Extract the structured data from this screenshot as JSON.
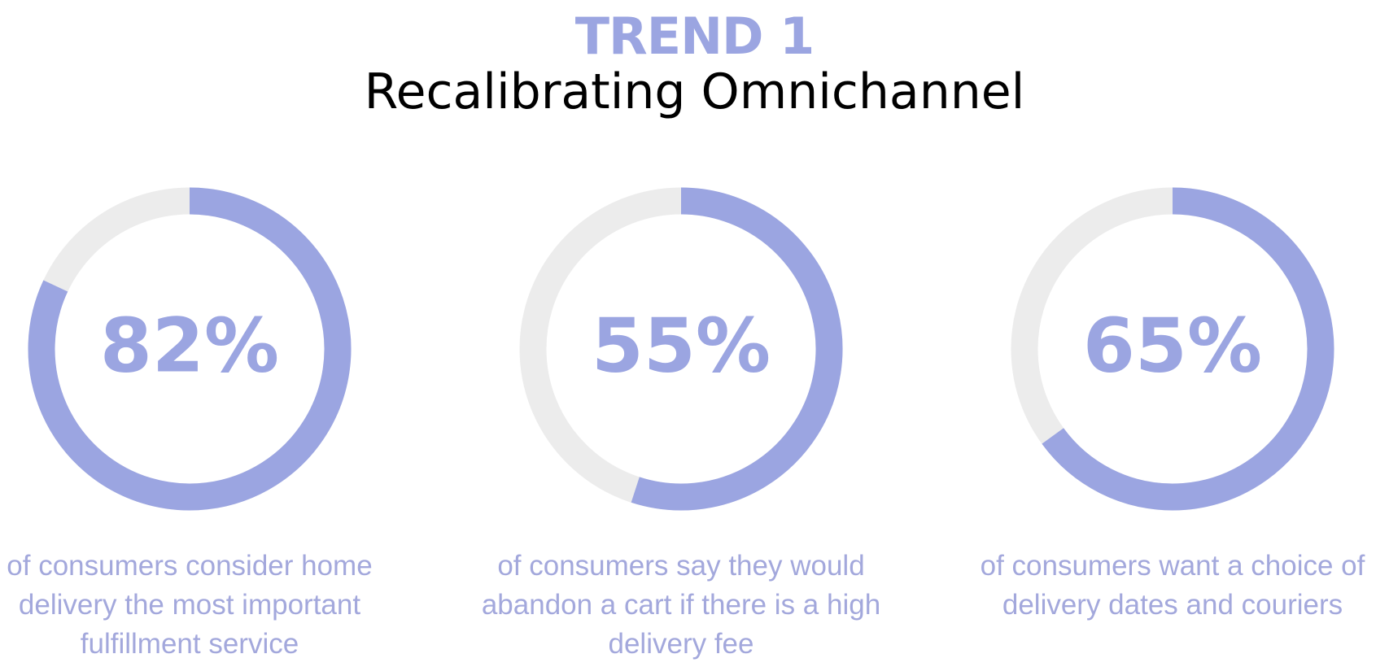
{
  "header": {
    "kicker": "TREND 1",
    "title": "Recalibrating Omnichannel"
  },
  "chart_data": [
    {
      "type": "donut",
      "values": [
        82
      ],
      "value_labels": [
        "82%"
      ],
      "color": "#9ba5e1",
      "track_color": "#ececec",
      "caption": "of consumers consider home delivery the most important fulfillment service"
    },
    {
      "type": "donut",
      "values": [
        55
      ],
      "value_labels": [
        "55%"
      ],
      "color": "#9ba5e1",
      "track_color": "#ececec",
      "caption": "of consumers say they would abandon a cart if there is a high delivery fee"
    },
    {
      "type": "donut",
      "values": [
        65
      ],
      "value_labels": [
        "65%"
      ],
      "color": "#9ba5e1",
      "track_color": "#ececec",
      "caption": "of consumers want a choice of delivery dates and couriers"
    }
  ]
}
